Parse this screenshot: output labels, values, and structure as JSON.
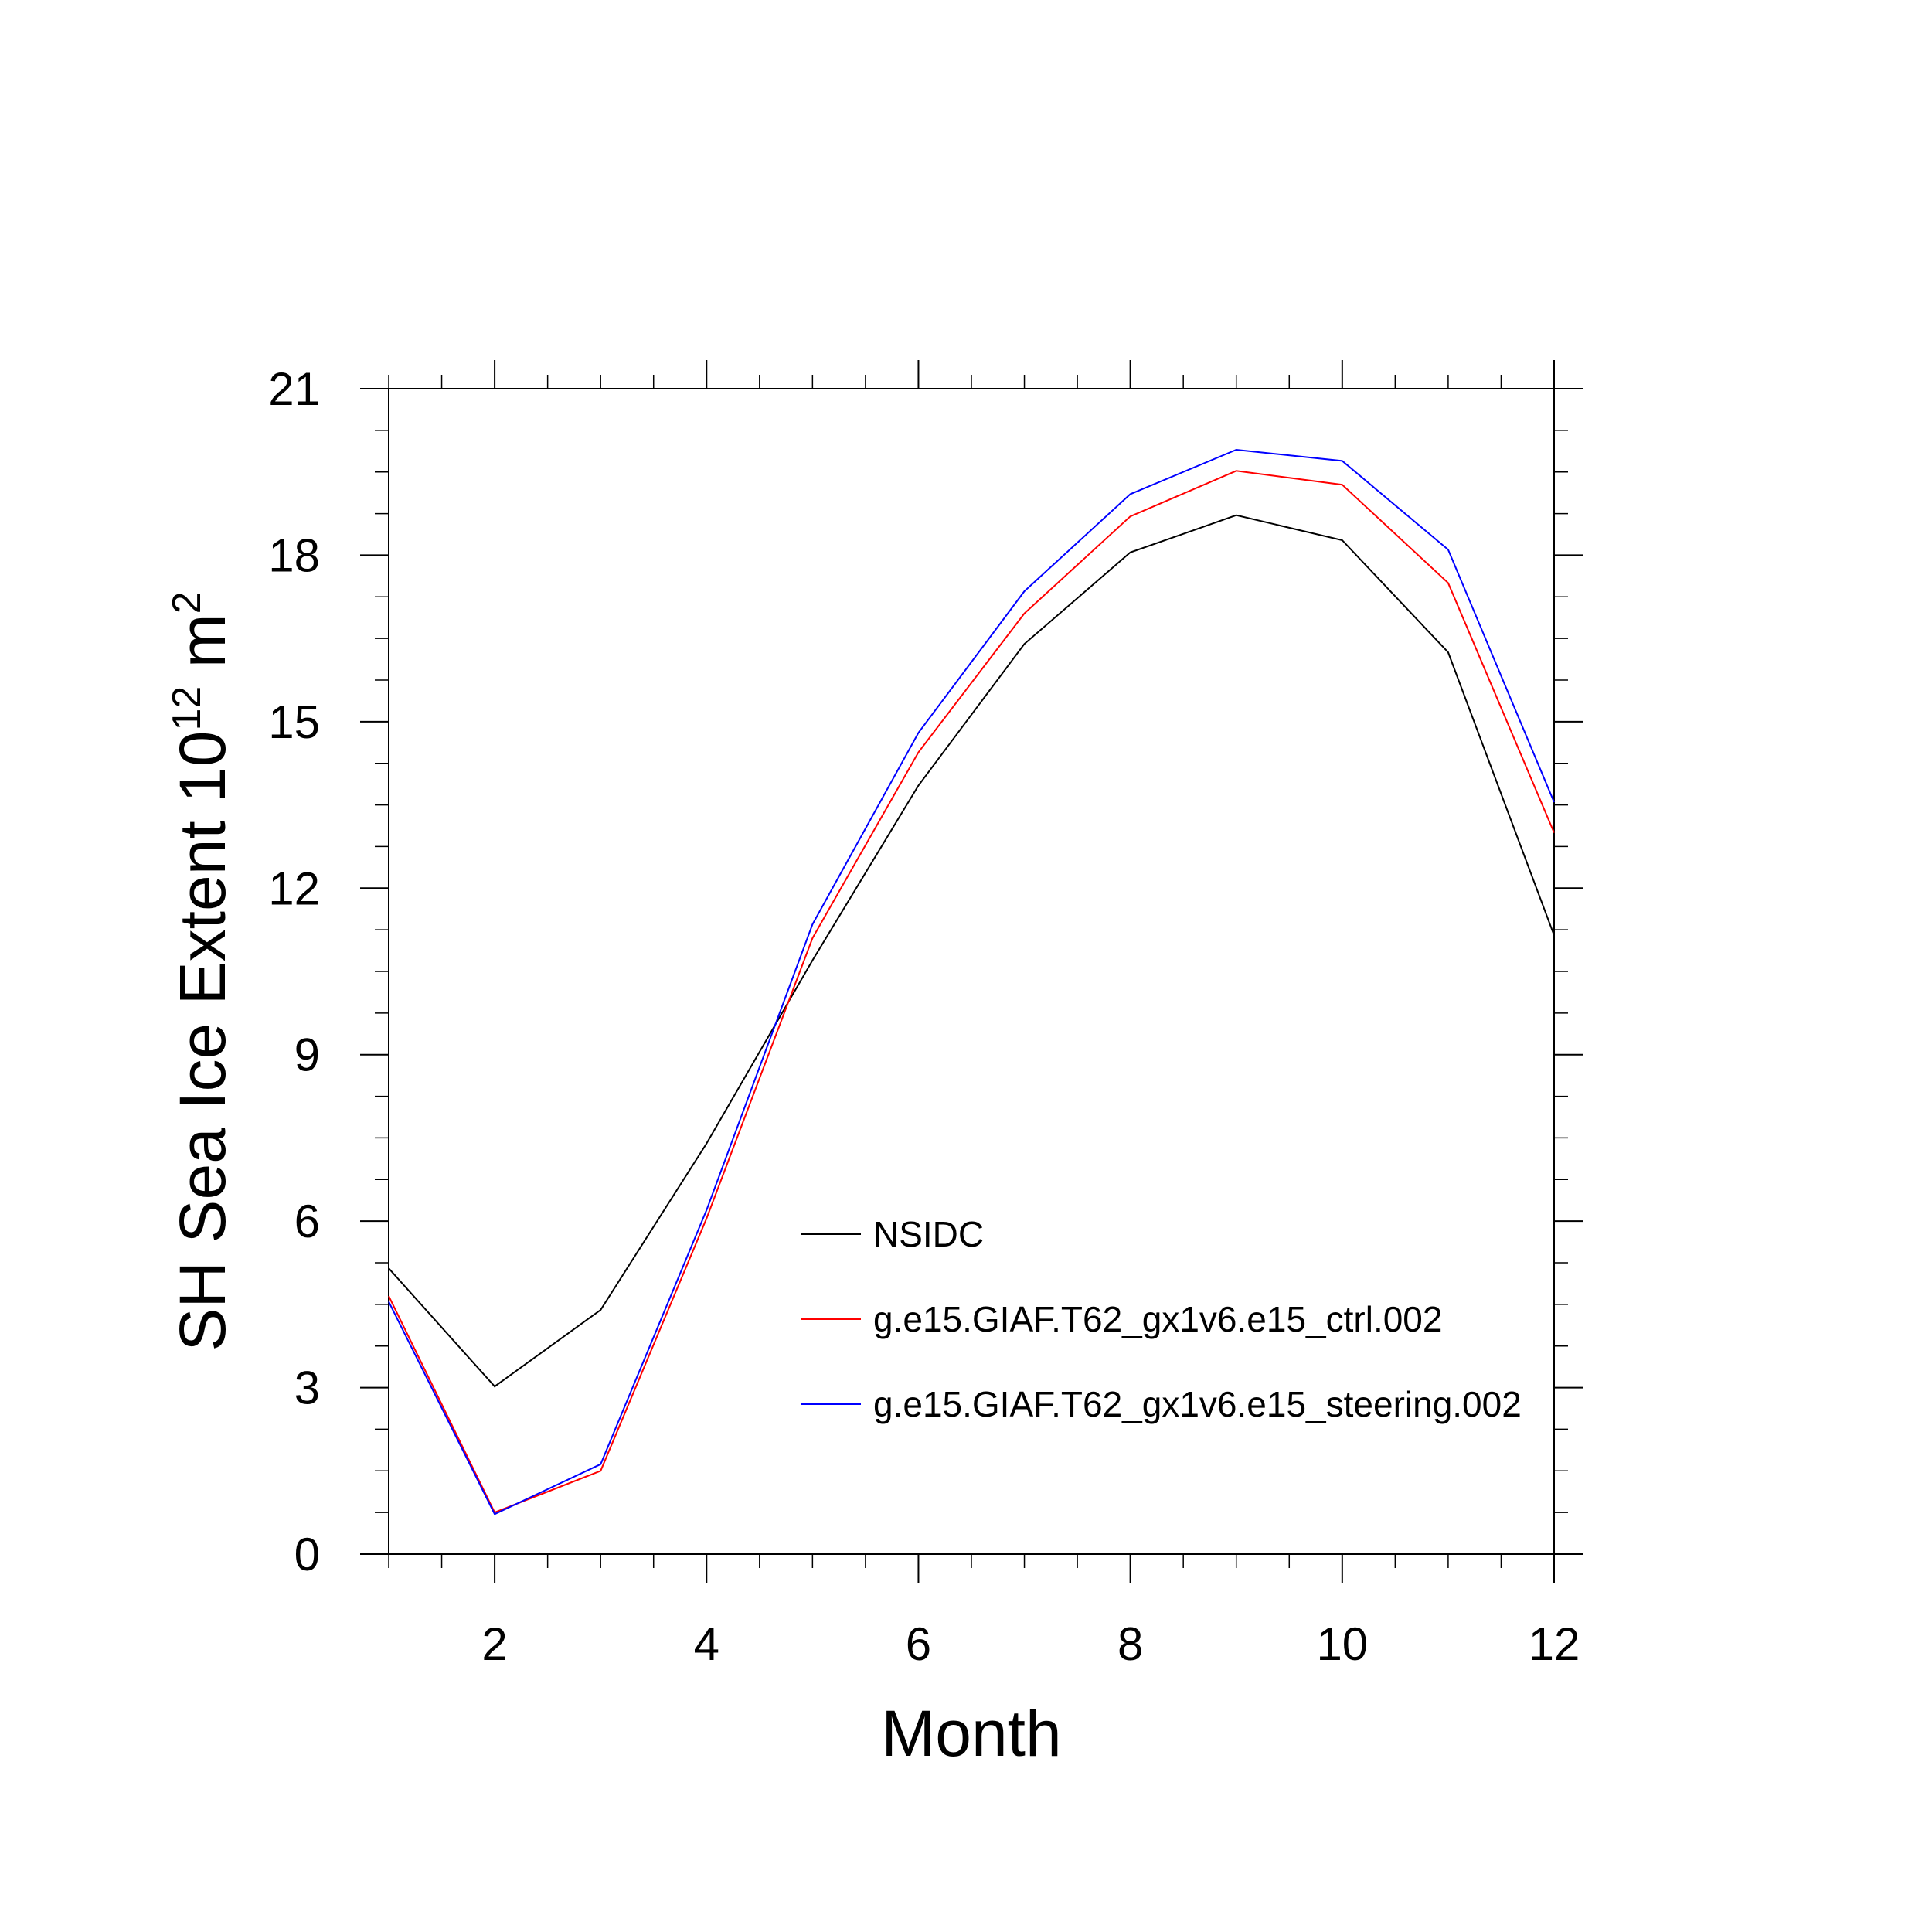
{
  "chart_data": {
    "type": "line",
    "title": "",
    "xlabel": "Month",
    "ylabel": {
      "main": "SH Sea Ice Extent 10",
      "exponent": "12",
      "unit": "m",
      "unit_exponent": "2"
    },
    "xlim": [
      1,
      12
    ],
    "ylim": [
      0,
      21
    ],
    "x_ticks": [
      2,
      4,
      6,
      8,
      10,
      12
    ],
    "x_tick_labels": [
      "2",
      "4",
      "6",
      "8",
      "10",
      "12"
    ],
    "y_ticks": [
      0,
      3,
      6,
      9,
      12,
      15,
      18,
      21
    ],
    "y_tick_labels": [
      "0",
      "3",
      "6",
      "9",
      "12",
      "15",
      "18",
      "21"
    ],
    "grid": false,
    "legend_placement": "lower-right inside",
    "x": [
      1,
      2,
      3,
      4,
      5,
      6,
      7,
      8,
      9,
      10,
      11,
      12
    ],
    "series": [
      {
        "name": "NSIDC",
        "color": "#000000",
        "values": [
          5.15,
          3.02,
          4.4,
          7.4,
          10.7,
          13.85,
          16.4,
          18.05,
          18.72,
          18.27,
          16.25,
          11.15
        ]
      },
      {
        "name": "g.e15.GIAF.T62_gx1v6.e15_ctrl.002",
        "color": "#ff0000",
        "values": [
          4.65,
          0.75,
          1.5,
          6.05,
          11.1,
          14.45,
          16.95,
          18.7,
          19.52,
          19.27,
          17.5,
          13.0
        ]
      },
      {
        "name": "g.e15.GIAF.T62_gx1v6.e15_steering.002",
        "color": "#0000ff",
        "values": [
          4.55,
          0.72,
          1.62,
          6.2,
          11.35,
          14.8,
          17.35,
          19.1,
          19.9,
          19.7,
          18.1,
          13.55
        ]
      }
    ]
  }
}
